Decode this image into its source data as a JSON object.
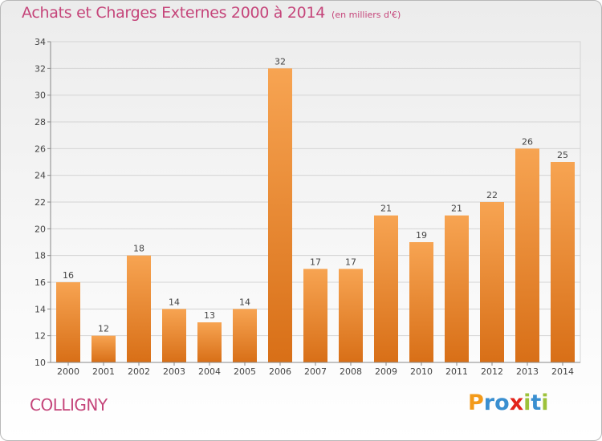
{
  "header": {
    "title": "Achats et Charges Externes 2000 à 2014",
    "subtitle": "(en milliers d'€)"
  },
  "location": "COLLIGNY",
  "logo": {
    "letters": [
      "P",
      "r",
      "o",
      "x",
      "i",
      "t",
      "i"
    ],
    "colors": [
      "#f39a1a",
      "#3a8fd0",
      "#3a8fd0",
      "#e2231a",
      "#9dc23b",
      "#3a8fd0",
      "#9dc23b"
    ]
  },
  "colors": {
    "bar_top": "#f7a452",
    "bar_bottom": "#d86f17",
    "title": "#c5457a"
  },
  "chart_data": {
    "type": "bar",
    "categories": [
      "2000",
      "2001",
      "2002",
      "2003",
      "2004",
      "2005",
      "2006",
      "2007",
      "2008",
      "2009",
      "2010",
      "2011",
      "2012",
      "2013",
      "2014"
    ],
    "values": [
      16,
      12,
      18,
      14,
      13,
      14,
      32,
      17,
      17,
      21,
      19,
      21,
      22,
      26,
      25
    ],
    "ylim": [
      10,
      34
    ],
    "yticks": [
      10,
      12,
      14,
      16,
      18,
      20,
      22,
      24,
      26,
      28,
      30,
      32,
      34
    ],
    "grid": true
  }
}
